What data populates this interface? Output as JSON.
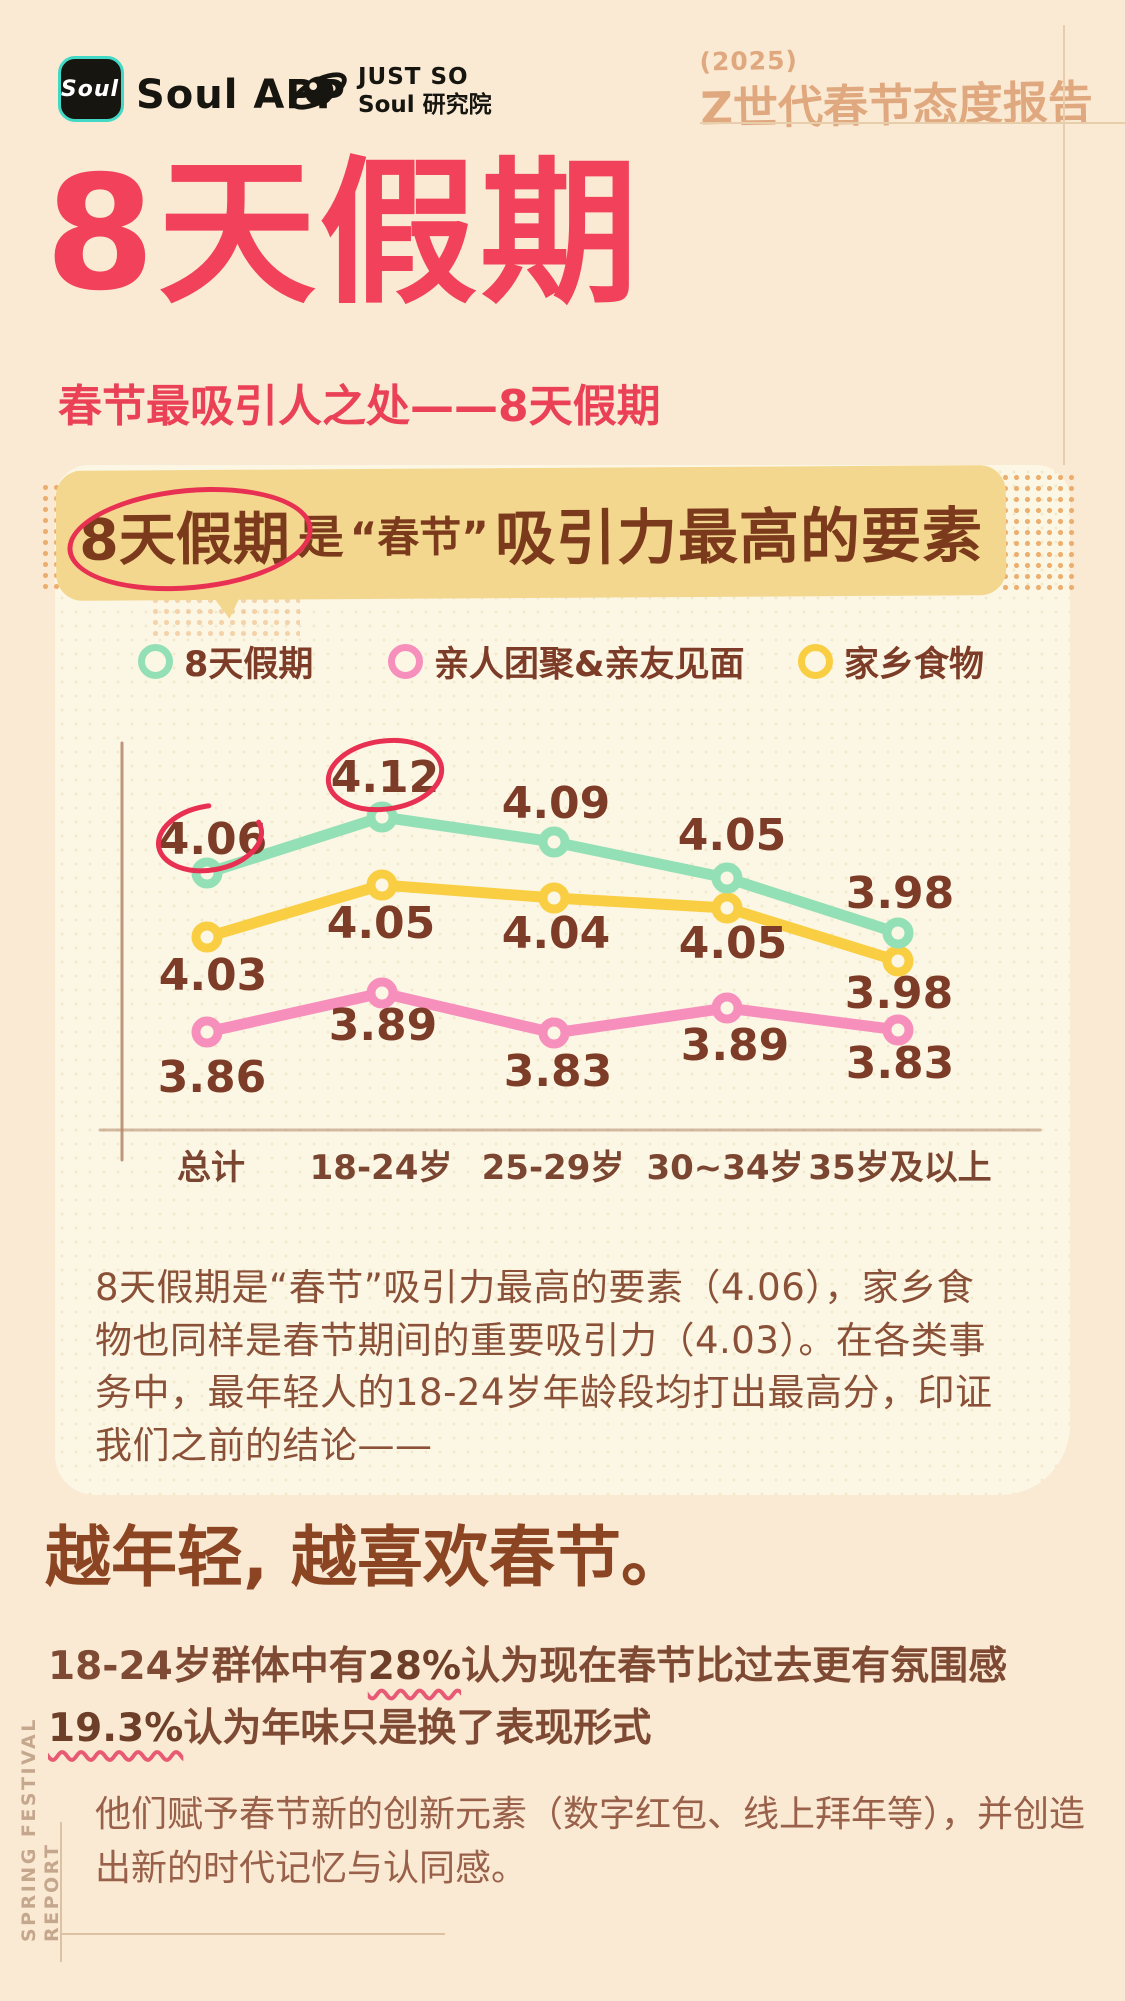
{
  "header": {
    "soul_icon_text": "Soul",
    "soul_app_label": "Soul APP",
    "institute_top": "JUST SO",
    "institute_bottom": "Soul 研究院",
    "report_year": "(2025)",
    "report_title": "Z世代春节态度报告"
  },
  "hero": {
    "title": "8天假期",
    "subtitle": "春节最吸引人之处——8天假期"
  },
  "banner": {
    "circled": "8天假期",
    "connector": "是",
    "quoted": "“春节”",
    "emphasis": "吸引力最高的要素"
  },
  "chart_data": {
    "type": "line",
    "categories": [
      "总计",
      "18-24岁",
      "25-29岁",
      "30~34岁",
      "35岁及以上"
    ],
    "series": [
      {
        "name": "8天假期",
        "color": "#93dfb6",
        "values": [
          4.06,
          4.12,
          4.09,
          4.05,
          3.98
        ]
      },
      {
        "name": "亲人团聚&亲友见面",
        "color": "#f78fbc",
        "values": [
          3.86,
          3.89,
          3.83,
          3.89,
          3.83
        ]
      },
      {
        "name": "家乡食物",
        "color": "#f9ce43",
        "values": [
          4.03,
          4.05,
          4.04,
          4.05,
          3.98
        ]
      }
    ],
    "ylim": [
      3.75,
      4.2
    ],
    "grid": false,
    "legend_position": "top",
    "annotations": [
      {
        "series": 0,
        "point": 0,
        "style": "red-circle"
      },
      {
        "series": 0,
        "point": 1,
        "style": "red-circle"
      }
    ]
  },
  "card": {
    "paragraph": "8天假期是“春节”吸引力最高的要素（4.06），家乡食物也同样是春节期间的重要吸引力（4.03）。在各类事务中，最年轻人的18-24岁年龄段均打出最高分，印证我们之前的结论——"
  },
  "section2": {
    "headline": "越年轻, 越喜欢春节。",
    "stat1_prefix": "18-24岁群体中有",
    "stat1_value": "28%",
    "stat1_suffix": "认为现在春节比过去更有氛围感",
    "stat2_value": "19.3%",
    "stat2_suffix": "认为年味只是换了表现形式",
    "paragraph": "他们赋予春节新的创新元素（数字红包、线上拜年等），并创造出新的时代记忆与认同感。"
  },
  "footer": {
    "vertical_label_line1": "SPRING FESTIVAL",
    "vertical_label_line2": "REPORT"
  },
  "colors": {
    "page_bg": "#faead4",
    "card_bg": "#fcf7e4",
    "banner_bg": "#f3d78f",
    "banner_text": "#7c3a1d",
    "title_pink": "#f2415a",
    "accent_red": "#e83052",
    "label_brown": "#7c3c28",
    "axis_brown": "#b3876b",
    "green": "#93dfb6",
    "pink": "#f78fbc",
    "yellow": "#f9ce43"
  }
}
